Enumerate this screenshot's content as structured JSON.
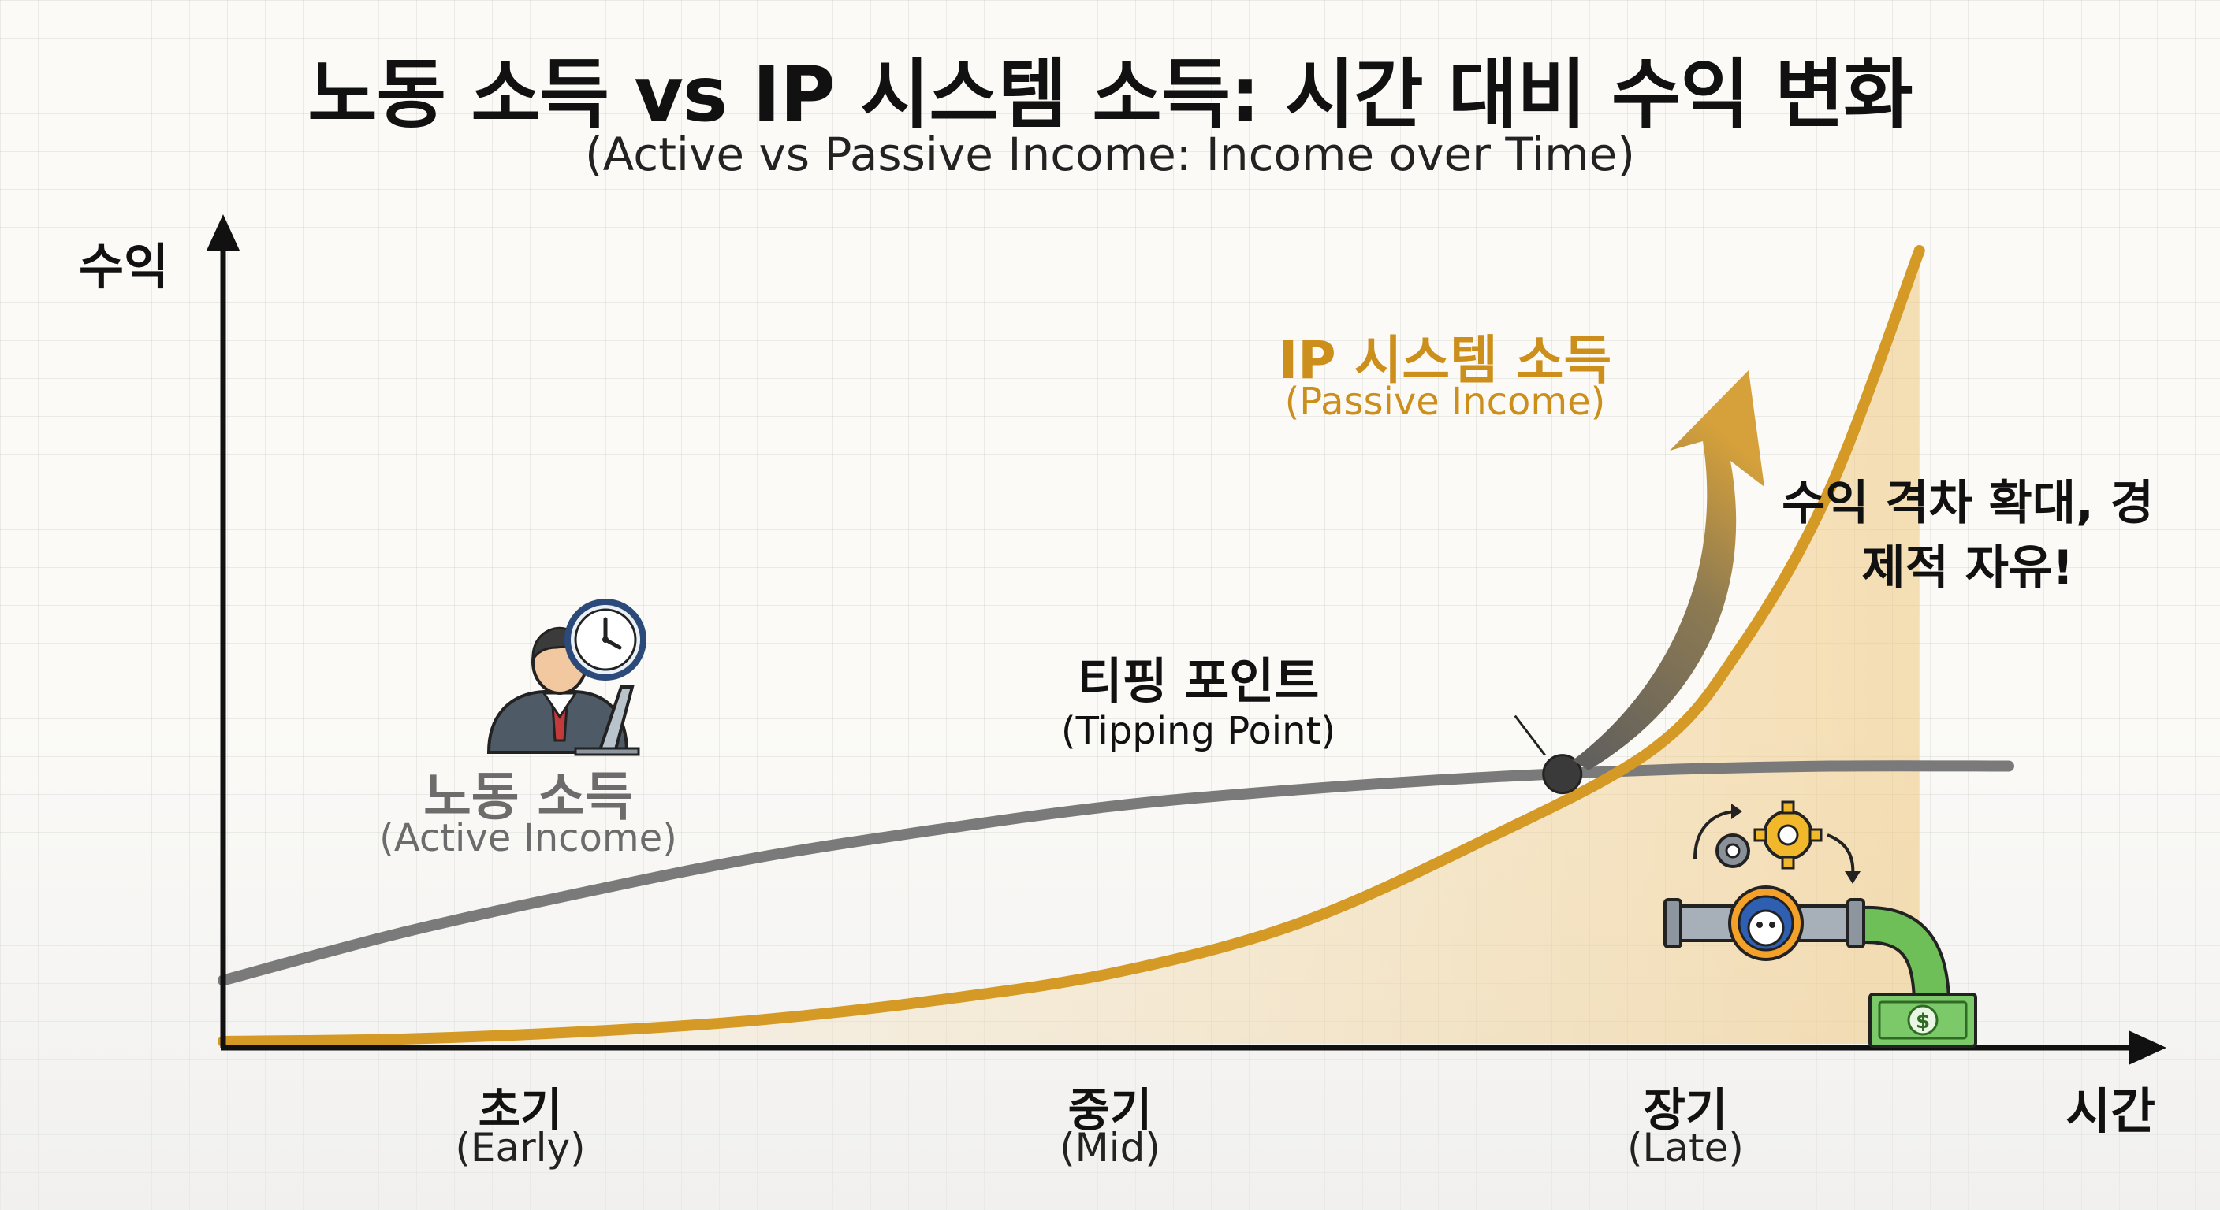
{
  "title": "노동 소득 vs IP 시스템 소득: 시간 대비 수익 변화",
  "subtitle": "(Active vs Passive Income: Income over Time)",
  "chart_data": {
    "type": "line",
    "title": "노동 소득 vs IP 시스템 소득: 시간 대비 수익 변화",
    "subtitle": "(Active vs Passive Income: Income over Time)",
    "xlabel": "시간",
    "ylabel": "수익",
    "x_ticks": [
      {
        "label": "초기",
        "sublabel": "(Early)",
        "x": 0.15
      },
      {
        "label": "중기",
        "sublabel": "(Mid)",
        "x": 0.5
      },
      {
        "label": "장기",
        "sublabel": "(Late)",
        "x": 0.85
      }
    ],
    "xlim": [
      0,
      1.1
    ],
    "ylim": [
      0,
      1.1
    ],
    "grid": true,
    "series": [
      {
        "name": "노동 소득",
        "sublabel": "(Active Income)",
        "color": "#7a7a7a",
        "x": [
          0,
          0.1,
          0.2,
          0.3,
          0.4,
          0.5,
          0.6,
          0.7,
          0.8,
          0.9,
          1.0
        ],
        "y": [
          0.08,
          0.14,
          0.19,
          0.235,
          0.27,
          0.3,
          0.32,
          0.335,
          0.345,
          0.35,
          0.35
        ]
      },
      {
        "name": "IP 시스템 소득",
        "sublabel": "(Passive Income)",
        "color": "#d49a25",
        "x": [
          0,
          0.1,
          0.2,
          0.3,
          0.4,
          0.5,
          0.6,
          0.7,
          0.8,
          0.85,
          0.9,
          0.95
        ],
        "y": [
          0.003,
          0.006,
          0.015,
          0.03,
          0.055,
          0.09,
          0.15,
          0.25,
          0.37,
          0.5,
          0.7,
          1.0
        ]
      }
    ],
    "tipping_point": {
      "x": 0.75,
      "y": 0.34,
      "label": "티핑 포인트",
      "sublabel": "(Tipping Point)"
    },
    "annotations": [
      {
        "text": "수익 격차 확대, 경제적 자유!"
      }
    ]
  },
  "labels": {
    "active": "노동 소득",
    "active_sub": "(Active Income)",
    "passive": "IP 시스템 소득",
    "passive_sub": "(Passive Income)",
    "tipping": "티핑 포인트",
    "tipping_sub": "(Tipping Point)",
    "gap": "수익 격차 확대, 경제적 자유!"
  },
  "icons": {
    "worker": "person-at-laptop-icon",
    "clock": "clock-icon",
    "pipeline": "money-pipeline-icon",
    "gears": "gears-icon",
    "money": "dollar-bill-icon"
  },
  "colors": {
    "active": "#7a7a7a",
    "passive": "#d49a25",
    "axis": "#111111"
  }
}
